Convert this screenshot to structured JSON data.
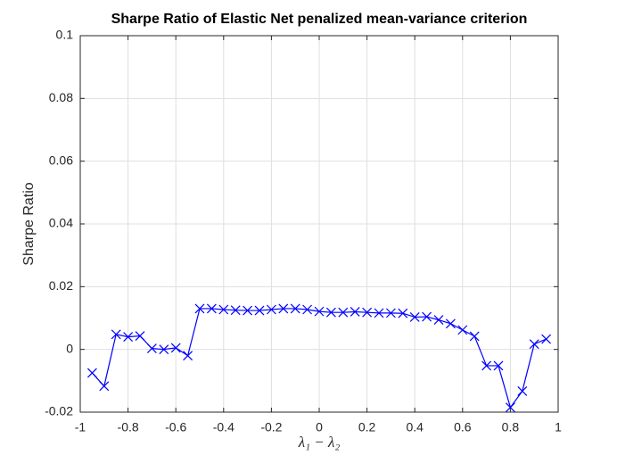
{
  "chart_data": {
    "type": "line",
    "title": "Sharpe Ratio of Elastic Net penalized mean-variance criterion",
    "x_label": "λ₁ − λ₂",
    "y_label": "Sharpe Ratio",
    "x": [
      -0.95,
      -0.9,
      -0.85,
      -0.8,
      -0.75,
      -0.7,
      -0.65,
      -0.6,
      -0.55,
      -0.5,
      -0.45,
      -0.4,
      -0.35,
      -0.3,
      -0.25,
      -0.2,
      -0.15,
      -0.1,
      -0.05,
      0,
      0.05,
      0.1,
      0.15,
      0.2,
      0.25,
      0.3,
      0.35,
      0.4,
      0.45,
      0.5,
      0.55,
      0.6,
      0.65,
      0.7,
      0.75,
      0.8,
      0.85,
      0.9,
      0.95
    ],
    "series": [
      {
        "name": "Sharpe Ratio",
        "color": "#0000ff",
        "values": [
          -0.0075,
          -0.0117,
          0.0048,
          0.004,
          0.0043,
          0.0003,
          0,
          0.0005,
          -0.002,
          0.013,
          0.013,
          0.0127,
          0.0125,
          0.0124,
          0.0124,
          0.0127,
          0.013,
          0.013,
          0.0127,
          0.0121,
          0.0118,
          0.0118,
          0.012,
          0.0118,
          0.0116,
          0.0116,
          0.0115,
          0.0103,
          0.0104,
          0.0094,
          0.0082,
          0.0062,
          0.0042,
          -0.0052,
          -0.0052,
          -0.0185,
          -0.0133,
          0.0017,
          0.0033
        ]
      }
    ],
    "xlim": [
      -1,
      1
    ],
    "ylim": [
      -0.02,
      0.1
    ],
    "xticks": [
      -1,
      -0.8,
      -0.6,
      -0.4,
      -0.2,
      0,
      0.2,
      0.4,
      0.6,
      0.8,
      1
    ],
    "yticks": [
      -0.02,
      0,
      0.02,
      0.04,
      0.06,
      0.08,
      0.1
    ],
    "grid": true
  }
}
